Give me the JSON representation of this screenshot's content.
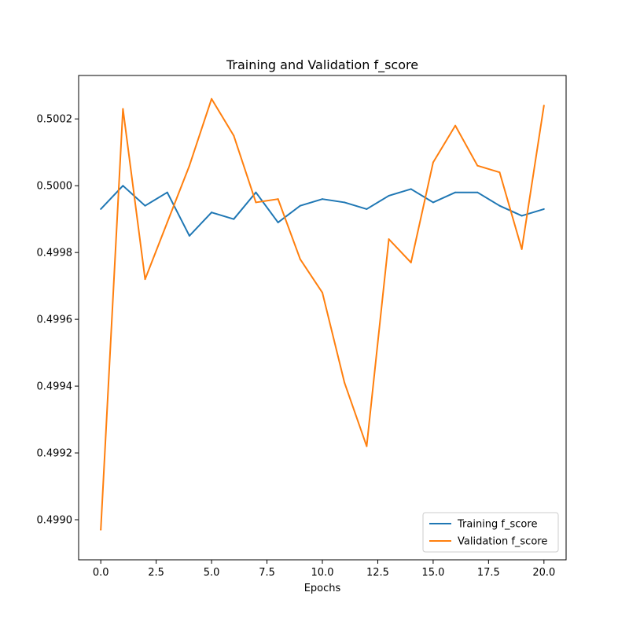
{
  "chart_data": {
    "type": "line",
    "title": "Training and Validation f_score",
    "xlabel": "Epochs",
    "ylabel": "",
    "xlim": [
      -1.0,
      21.0
    ],
    "ylim": [
      0.49888,
      0.50033
    ],
    "xticks": [
      0.0,
      2.5,
      5.0,
      7.5,
      10.0,
      12.5,
      15.0,
      17.5,
      20.0
    ],
    "xtick_labels": [
      "0.0",
      "2.5",
      "5.0",
      "7.5",
      "10.0",
      "12.5",
      "15.0",
      "17.5",
      "20.0"
    ],
    "yticks": [
      0.499,
      0.4992,
      0.4994,
      0.4996,
      0.4998,
      0.5,
      0.5002
    ],
    "ytick_labels": [
      "0.4990",
      "0.4992",
      "0.4994",
      "0.4996",
      "0.4998",
      "0.5000",
      "0.5002"
    ],
    "grid": false,
    "legend_position": "bottom-right",
    "x": [
      0,
      1,
      2,
      3,
      4,
      5,
      6,
      7,
      8,
      9,
      10,
      11,
      12,
      13,
      14,
      15,
      16,
      17,
      18,
      19,
      20
    ],
    "series": [
      {
        "name": "Training f_score",
        "color": "#1f77b4",
        "values": [
          0.49993,
          0.5,
          0.49994,
          0.49998,
          0.49985,
          0.49992,
          0.4999,
          0.49998,
          0.49989,
          0.49994,
          0.49996,
          0.49995,
          0.49993,
          0.49997,
          0.49999,
          0.49995,
          0.49998,
          0.49998,
          0.49994,
          0.49991,
          0.49993
        ]
      },
      {
        "name": "Validation f_score",
        "color": "#ff7f0e",
        "values": [
          0.49897,
          0.50023,
          0.49972,
          0.49989,
          0.50006,
          0.50026,
          0.50015,
          0.49995,
          0.49996,
          0.49978,
          0.49968,
          0.49941,
          0.49922,
          0.49984,
          0.49977,
          0.50007,
          0.50018,
          0.50006,
          0.50004,
          0.49981,
          0.50024
        ]
      }
    ]
  }
}
